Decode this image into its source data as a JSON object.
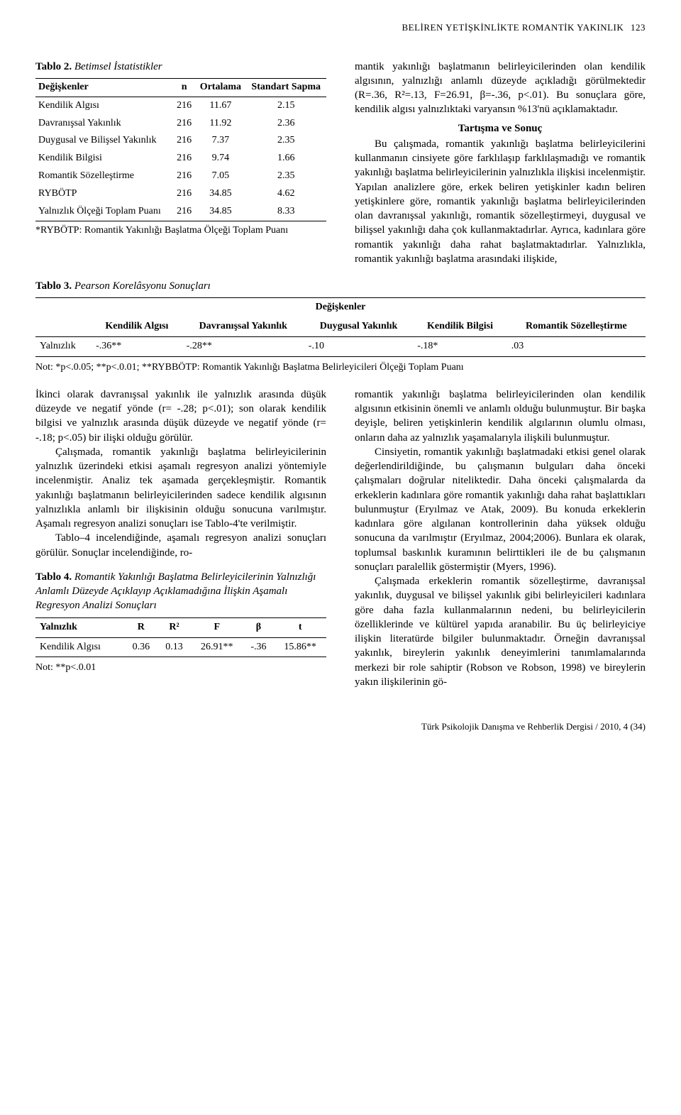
{
  "running_head": {
    "title": "BELİREN YETİŞKİNLİKTE ROMANTİK YAKINLIK",
    "page": "123"
  },
  "table2": {
    "caption_bold": "Tablo 2.",
    "caption_ital": "Betimsel İstatistikler",
    "headers": {
      "c1": "Değişkenler",
      "c2": "n",
      "c3": "Ortalama",
      "c4": "Standart Sapma"
    },
    "rows": [
      {
        "label": "Kendilik Algısı",
        "n": "216",
        "mean": "11.67",
        "sd": "2.15"
      },
      {
        "label": "Davranışsal Yakınlık",
        "n": "216",
        "mean": "11.92",
        "sd": "2.36"
      },
      {
        "label": "Duygusal ve Bilişsel Yakınlık",
        "n": "216",
        "mean": "7.37",
        "sd": "2.35"
      },
      {
        "label": "Kendilik Bilgisi",
        "n": "216",
        "mean": "9.74",
        "sd": "1.66"
      },
      {
        "label": "Romantik Sözelleştirme",
        "n": "216",
        "mean": "7.05",
        "sd": "2.35"
      },
      {
        "label": "RYBÖTP",
        "n": "216",
        "mean": "34.85",
        "sd": "4.62"
      },
      {
        "label": "Yalnızlık Ölçeği Toplam Puanı",
        "n": "216",
        "mean": "34.85",
        "sd": "8.33"
      }
    ],
    "footnote": "*RYBÖTP: Romantik Yakınlığı Başlatma Ölçeği Toplam Puanı"
  },
  "right_col": {
    "p1": "mantik yakınlığı başlatmanın belirleyicilerinden olan kendilik algısının, yalnızlığı anlamlı düzeyde açıkladığı görülmektedir (R=.36, R²=.13, F=26.91, β=-.36, p<.01). Bu sonuçlara göre, kendilik algısı yalnızlıktaki varyansın %13'nü açıklamaktadır.",
    "section_title": "Tartışma ve Sonuç",
    "p2": "Bu çalışmada, romantik yakınlığı başlatma belirleyicilerini kullanmanın cinsiyete göre farklılaşıp farklılaşmadığı ve romantik yakınlığı başlatma belirleyicilerinin yalnızlıkla ilişkisi incelenmiştir. Yapılan analizlere göre, erkek beliren yetişkinler kadın beliren yetişkinlere göre, romantik yakınlığı başlatma belirleyicilerinden olan davranışsal yakınlığı, romantik sözelleştirmeyi, duygusal ve bilişsel yakınlığı daha çok kullanmaktadırlar. Ayrıca, kadınlara göre romantik yakınlığı daha rahat başlatmaktadırlar. Yalnızlıkla, romantik yakınlığı başlatma arasındaki ilişkide,"
  },
  "table3": {
    "caption_bold": "Tablo 3.",
    "caption_ital": "Pearson Korelâsyonu Sonuçları",
    "group_header": "Değişkenler",
    "headers": {
      "c0": "",
      "c1": "Kendilik Algısı",
      "c2": "Davranışsal Yakınlık",
      "c3": "Duygusal Yakınlık",
      "c4": "Kendilik Bilgisi",
      "c5": "Romantik Sözelleştirme"
    },
    "row": {
      "label": "Yalnızlık",
      "v1": "-.36**",
      "v2": "-.28**",
      "v3": "-.10",
      "v4": "-.18*",
      "v5": ".03"
    },
    "footnote": "Not: *p<.0.05; **p<.0.01; **RYBBÖTP: Romantik Yakınlığı Başlatma Belirleyicileri Ölçeği Toplam Puanı"
  },
  "lower_left": {
    "p1": "İkinci olarak davranışsal yakınlık ile yalnızlık arasında düşük düzeyde ve negatif yönde (r= -.28; p<.01); son olarak kendilik bilgisi ve yalnızlık arasında düşük düzeyde ve negatif yönde (r= -.18; p<.05) bir ilişki olduğu görülür.",
    "p2": "Çalışmada, romantik yakınlığı başlatma belirleyicilerinin yalnızlık üzerindeki etkisi aşamalı regresyon analizi yöntemiyle incelenmiştir. Analiz tek aşamada gerçekleşmiştir. Romantik yakınlığı başlatmanın belirleyicilerinden sadece kendilik algısının yalnızlıkla anlamlı bir ilişkisinin olduğu sonucuna varılmıştır. Aşamalı regresyon analizi sonuçları ise Tablo-4'te verilmiştir.",
    "p3": "Tablo–4 incelendiğinde, aşamalı regresyon analizi sonuçları görülür. Sonuçlar incelendiğinde, ro-"
  },
  "table4": {
    "caption_bold": "Tablo 4.",
    "caption_ital": "Romantik Yakınlığı Başlatma Belirleyicilerinin Yalnızlığı Anlamlı Düzeyde Açıklayıp Açıklamadığına İlişkin Aşamalı Regresyon Analizi Sonuçları",
    "headers": {
      "c1": "Yalnızlık",
      "c2": "R",
      "c3": "R²",
      "c4": "F",
      "c5": "β",
      "c6": "t"
    },
    "row": {
      "label": "Kendilik Algısı",
      "R": "0.36",
      "R2": "0.13",
      "F": "26.91**",
      "beta": "-.36",
      "t": "15.86**"
    },
    "footnote": "Not: **p<.0.01"
  },
  "lower_right": {
    "p1": "romantik yakınlığı başlatma belirleyicilerinden olan kendilik algısının etkisinin önemli ve anlamlı olduğu bulunmuştur. Bir başka deyişle, beliren yetişkinlerin kendilik algılarının olumlu olması, onların daha az yalnızlık yaşamalarıyla ilişkili bulunmuştur.",
    "p2": "Cinsiyetin, romantik yakınlığı başlatmadaki etkisi genel olarak değerlendirildiğinde, bu çalışmanın bulguları daha önceki çalışmaları doğrular niteliktedir. Daha önceki çalışmalarda da erkeklerin kadınlara göre romantik yakınlığı daha rahat başlattıkları bulunmuştur (Eryılmaz ve Atak, 2009). Bu konuda erkeklerin kadınlara göre algılanan kontrollerinin daha yüksek olduğu sonucuna da varılmıştır (Eryılmaz, 2004;2006). Bunlara ek olarak, toplumsal baskınlık kuramının belirttikleri ile de bu çalışmanın sonuçları paralellik göstermiştir (Myers, 1996).",
    "p3": "Çalışmada erkeklerin romantik sözelleştirme, davranışsal yakınlık, duygusal ve bilişsel yakınlık gibi belirleyicileri kadınlara göre daha fazla kullanmalarının nedeni, bu belirleyicilerin özelliklerinde ve kültürel yapıda aranabilir. Bu üç belirleyiciye ilişkin literatürde bilgiler bulunmaktadır. Örneğin davranışsal yakınlık, bireylerin yakınlık deneyimlerini tanımlamalarında merkezi bir role sahiptir (Robson ve Robson, 1998) ve bireylerin yakın ilişkilerinin gö-"
  },
  "journal_foot": "Türk Psikolojik Danışma ve Rehberlik Dergisi / 2010, 4 (34)"
}
